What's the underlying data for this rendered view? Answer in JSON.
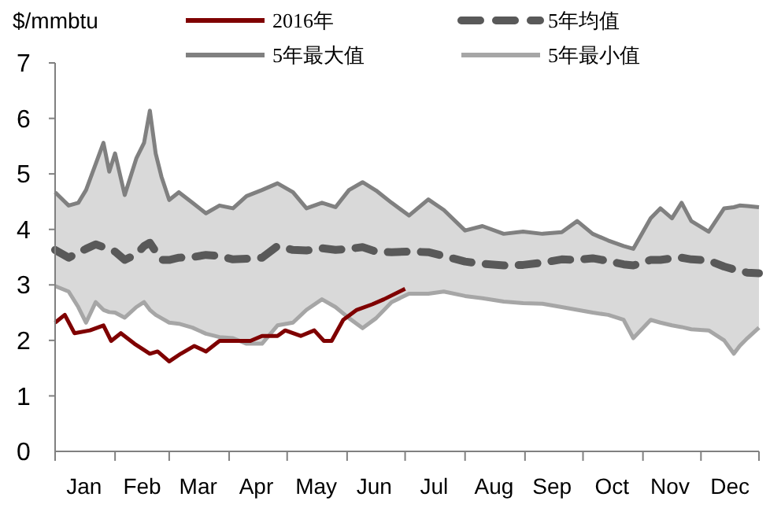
{
  "chart_data": {
    "type": "line",
    "ylabel": "$/mmbtu",
    "x": [
      "--01-01",
      "--01-08",
      "--01-13",
      "--01-17",
      "--01-22",
      "--01-26",
      "--01-29",
      "--02-01",
      "--02-06",
      "--02-12",
      "--02-16",
      "--02-19",
      "--02-22",
      "--02-25",
      "--03-01",
      "--03-06",
      "--03-13",
      "--03-20",
      "--03-27",
      "--04-03",
      "--04-10",
      "--04-18",
      "--04-26",
      "--05-04",
      "--05-11",
      "--05-19",
      "--05-26",
      "--06-02",
      "--06-09",
      "--06-16",
      "--06-24",
      "--07-03",
      "--07-13",
      "--07-21",
      "--08-01",
      "--08-10",
      "--08-21",
      "--08-31",
      "--09-10",
      "--09-20",
      "--09-28",
      "--10-06",
      "--10-14",
      "--10-22",
      "--10-27",
      "--11-05",
      "--11-10",
      "--11-16",
      "--11-21",
      "--11-26",
      "--12-05",
      "--12-13",
      "--12-18",
      "--12-21",
      "--12-25",
      "--12-31"
    ],
    "xlim": [
      "--01-01",
      "--12-31"
    ],
    "xticks": [
      {
        "value": "--01-01",
        "label": null
      },
      {
        "value": "--01-16",
        "label": "Jan"
      },
      {
        "value": "--02-01",
        "label": null
      },
      {
        "value": "--02-15",
        "label": "Feb"
      },
      {
        "value": "--03-01",
        "label": null
      },
      {
        "value": "--03-16",
        "label": "Mar"
      },
      {
        "value": "--04-01",
        "label": null
      },
      {
        "value": "--04-15",
        "label": "Apr"
      },
      {
        "value": "--05-01",
        "label": null
      },
      {
        "value": "--05-16",
        "label": "May"
      },
      {
        "value": "--06-01",
        "label": null
      },
      {
        "value": "--06-15",
        "label": "Jun"
      },
      {
        "value": "--07-01",
        "label": null
      },
      {
        "value": "--07-16",
        "label": "Jul"
      },
      {
        "value": "--08-01",
        "label": null
      },
      {
        "value": "--08-16",
        "label": "Aug"
      },
      {
        "value": "--09-01",
        "label": null
      },
      {
        "value": "--09-15",
        "label": "Sep"
      },
      {
        "value": "--10-01",
        "label": null
      },
      {
        "value": "--10-16",
        "label": "Oct"
      },
      {
        "value": "--11-01",
        "label": null
      },
      {
        "value": "--11-15",
        "label": "Nov"
      },
      {
        "value": "--12-01",
        "label": null
      },
      {
        "value": "--12-16",
        "label": "Dec"
      },
      {
        "value": "--12-31",
        "label": null
      }
    ],
    "ylim": [
      0,
      7
    ],
    "yticks": [
      0,
      1,
      2,
      3,
      4,
      5,
      6,
      7
    ],
    "legend": "top",
    "marker": "none",
    "grid": false,
    "series": [
      {
        "name": "2016年",
        "color": "#7f0000",
        "line_style": "solid",
        "x": [
          "--01-01",
          "--01-06",
          "--01-11",
          "--01-19",
          "--01-26",
          "--01-30",
          "--02-04",
          "--02-11",
          "--02-19",
          "--02-23",
          "--03-01",
          "--03-07",
          "--03-14",
          "--03-20",
          "--03-27",
          "--04-04",
          "--04-12",
          "--04-18",
          "--04-26",
          "--04-30",
          "--05-08",
          "--05-15",
          "--05-20",
          "--05-24",
          "--05-30",
          "--06-06",
          "--06-14",
          "--06-20",
          "--07-01"
        ],
        "values": [
          2.32,
          2.46,
          2.13,
          2.18,
          2.27,
          1.99,
          2.13,
          1.94,
          1.76,
          1.8,
          1.62,
          1.76,
          1.9,
          1.8,
          1.99,
          1.99,
          1.99,
          2.08,
          2.08,
          2.18,
          2.08,
          2.18,
          1.99,
          1.99,
          2.37,
          2.55,
          2.65,
          2.74,
          2.93
        ]
      },
      {
        "name": "5年均值",
        "color": "#595959",
        "line_style": "dashed",
        "values": [
          3.63,
          3.49,
          3.58,
          3.65,
          3.73,
          3.68,
          3.63,
          3.6,
          3.45,
          3.55,
          3.7,
          3.76,
          3.6,
          3.45,
          3.45,
          3.49,
          3.5,
          3.54,
          3.52,
          3.46,
          3.47,
          3.49,
          3.7,
          3.63,
          3.62,
          3.66,
          3.63,
          3.65,
          3.68,
          3.6,
          3.59,
          3.6,
          3.59,
          3.52,
          3.42,
          3.38,
          3.35,
          3.36,
          3.4,
          3.46,
          3.45,
          3.48,
          3.43,
          3.37,
          3.35,
          3.45,
          3.45,
          3.48,
          3.49,
          3.46,
          3.44,
          3.33,
          3.28,
          3.26,
          3.22,
          3.21
        ],
        "lower": [
          2.98,
          2.88,
          2.6,
          2.32,
          2.69,
          2.55,
          2.51,
          2.5,
          2.41,
          2.6,
          2.69,
          2.55,
          2.46,
          2.4,
          2.32,
          2.3,
          2.23,
          2.12,
          2.06,
          2.04,
          1.94,
          1.94,
          2.27,
          2.32,
          2.55,
          2.74,
          2.6,
          2.4,
          2.22,
          2.4,
          2.69,
          2.84,
          2.84,
          2.88,
          2.8,
          2.76,
          2.7,
          2.67,
          2.66,
          2.6,
          2.55,
          2.5,
          2.46,
          2.37,
          2.04,
          2.37,
          2.32,
          2.27,
          2.24,
          2.2,
          2.18,
          2.0,
          1.76,
          1.9,
          2.04,
          2.23
        ],
        "upper": [
          4.67,
          4.43,
          4.48,
          4.71,
          5.18,
          5.56,
          5.04,
          5.37,
          4.62,
          5.28,
          5.56,
          6.14,
          5.37,
          4.95,
          4.53,
          4.67,
          4.48,
          4.29,
          4.43,
          4.38,
          4.6,
          4.71,
          4.83,
          4.67,
          4.38,
          4.48,
          4.4,
          4.71,
          4.85,
          4.7,
          4.48,
          4.25,
          4.54,
          4.35,
          3.98,
          4.06,
          3.92,
          3.96,
          3.92,
          3.95,
          4.15,
          3.92,
          3.8,
          3.7,
          3.65,
          4.2,
          4.38,
          4.2,
          4.48,
          4.15,
          3.96,
          4.38,
          4.4,
          4.43,
          4.42,
          4.4
        ]
      },
      {
        "name": "5年最大值",
        "color": "#808080",
        "line_style": "solid",
        "values": [
          4.67,
          4.43,
          4.48,
          4.71,
          5.18,
          5.56,
          5.04,
          5.37,
          4.62,
          5.28,
          5.56,
          6.14,
          5.37,
          4.95,
          4.53,
          4.67,
          4.48,
          4.29,
          4.43,
          4.38,
          4.6,
          4.71,
          4.83,
          4.67,
          4.38,
          4.48,
          4.4,
          4.71,
          4.85,
          4.7,
          4.48,
          4.25,
          4.54,
          4.35,
          3.98,
          4.06,
          3.92,
          3.96,
          3.92,
          3.95,
          4.15,
          3.92,
          3.8,
          3.7,
          3.65,
          4.2,
          4.38,
          4.2,
          4.48,
          4.15,
          3.96,
          4.38,
          4.4,
          4.43,
          4.42,
          4.4
        ]
      },
      {
        "name": "5年最小值",
        "color": "#a6a6a6",
        "line_style": "solid",
        "values": [
          2.98,
          2.88,
          2.6,
          2.32,
          2.69,
          2.55,
          2.51,
          2.5,
          2.41,
          2.6,
          2.69,
          2.55,
          2.46,
          2.4,
          2.32,
          2.3,
          2.23,
          2.12,
          2.06,
          2.04,
          1.94,
          1.94,
          2.27,
          2.32,
          2.55,
          2.74,
          2.6,
          2.4,
          2.22,
          2.4,
          2.69,
          2.84,
          2.84,
          2.88,
          2.8,
          2.76,
          2.7,
          2.67,
          2.66,
          2.6,
          2.55,
          2.5,
          2.46,
          2.37,
          2.04,
          2.37,
          2.32,
          2.27,
          2.24,
          2.2,
          2.18,
          2.0,
          1.76,
          1.9,
          2.04,
          2.23
        ]
      }
    ]
  }
}
